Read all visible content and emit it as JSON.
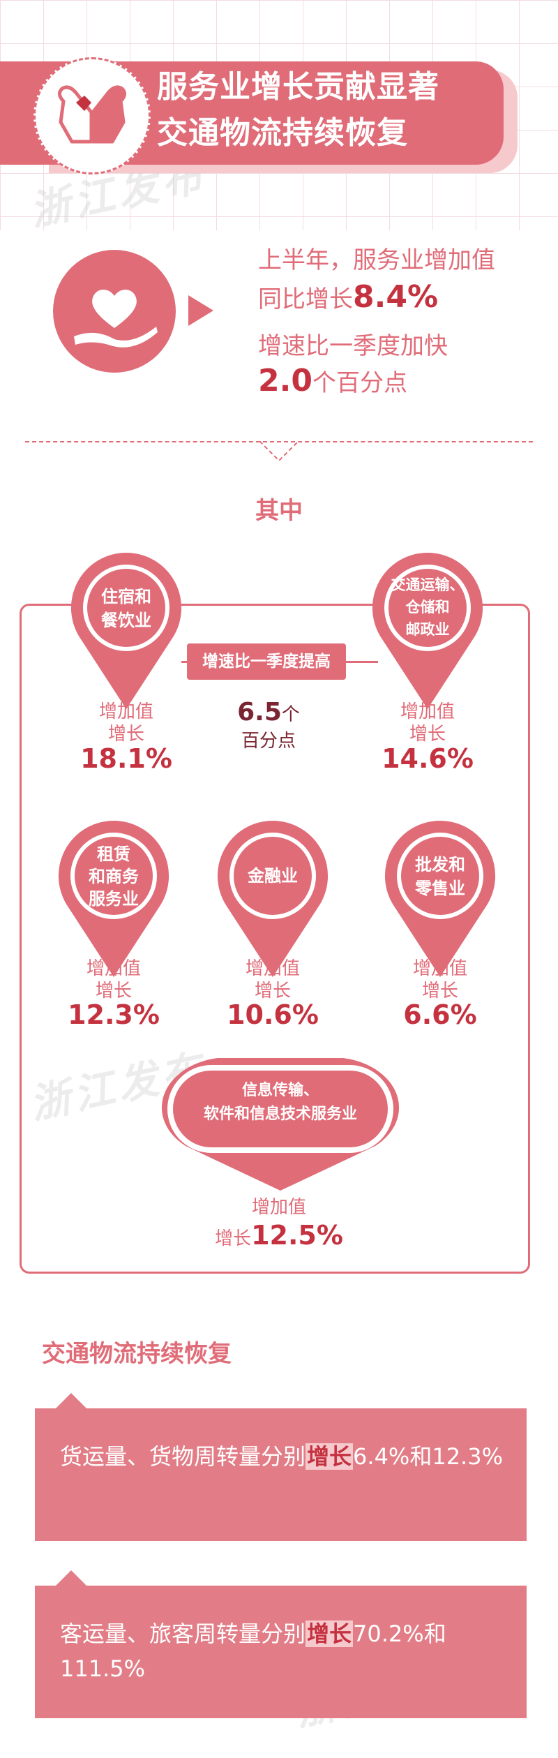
{
  "header": {
    "title_line1": "服务业增长贡献显著",
    "title_line2": "交通物流持续恢复",
    "icon": "heart-hands-icon",
    "watermark": "浙江发布"
  },
  "summary": {
    "icon": "heart-hand-icon",
    "line1": "上半年，服务业增加值",
    "line2_prefix": "同比增长",
    "line2_value": "8.4%",
    "line3": "增速比一季度加快",
    "line4_value": "2.0",
    "line4_suffix": "个百分点"
  },
  "section_label": "其中",
  "banner": {
    "text": "增速比一季度提高",
    "value": "6.5",
    "unit": "个",
    "unit2": "百分点"
  },
  "industries": [
    {
      "name_line1": "住宿和",
      "name_line2": "餐饮业",
      "name_line3": "",
      "label1": "增加值",
      "label2": "增长",
      "value": "18.1%"
    },
    {
      "name_line1": "交通运输、",
      "name_line2": "仓储和",
      "name_line3": "邮政业",
      "label1": "增加值",
      "label2": "增长",
      "value": "14.6%"
    },
    {
      "name_line1": "租赁",
      "name_line2": "和商务",
      "name_line3": "服务业",
      "label1": "增加值",
      "label2": "增长",
      "value": "12.3%"
    },
    {
      "name_line1": "金融业",
      "name_line2": "",
      "name_line3": "",
      "label1": "增加值",
      "label2": "增长",
      "value": "10.6%"
    },
    {
      "name_line1": "批发和",
      "name_line2": "零售业",
      "name_line3": "",
      "label1": "增加值",
      "label2": "增长",
      "value": "6.6%"
    },
    {
      "name_line1": "信息传输、",
      "name_line2": "软件和信息技术服务业",
      "name_line3": "",
      "label1": "增加值",
      "label2": "增长",
      "value": "12.5%"
    }
  ],
  "transport": {
    "title": "交通物流持续恢复",
    "freight_prefix": "货运量、货物周转量分别",
    "freight_highlight": "增长",
    "freight_values": "6.4%和12.3%",
    "passenger_prefix": "客运量、旅客周转量分别",
    "passenger_highlight": "增长",
    "passenger_values": "70.2%和111.5%"
  },
  "colors": {
    "primary": "#e06c78",
    "accent": "#c5323f",
    "light": "#f6c9cd"
  }
}
